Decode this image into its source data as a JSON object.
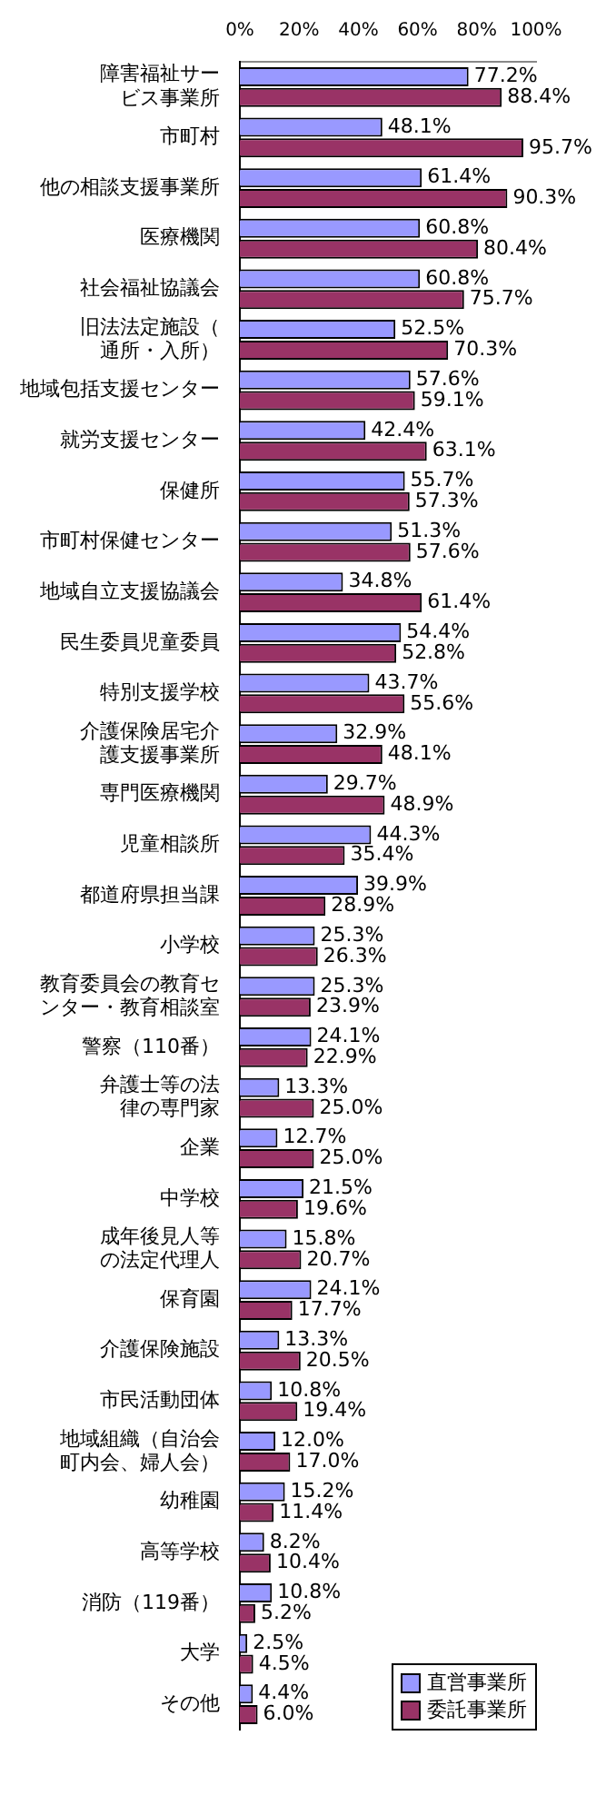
{
  "chart_data": {
    "type": "bar",
    "orientation": "horizontal",
    "categories": [
      "障害福祉サービス事業所",
      "市町村",
      "他の相談支援事業所",
      "医療機関",
      "社会福祉協議会",
      "旧法法定施設（通所・入所）",
      "地域包括支援センター",
      "就労支援センター",
      "保健所",
      "市町村保健センター",
      "地域自立支援協議会",
      "民生委員児童委員",
      "特別支援学校",
      "介護保険居宅介護支援事業所",
      "専門医療機関",
      "児童相談所",
      "都道府県担当課",
      "小学校",
      "教育委員会の教育センター・教育相談室",
      "警察（110番）",
      "弁護士等の法律の専門家",
      "企業",
      "中学校",
      "成年後見人等の法定代理人",
      "保育園",
      "介護保険施設",
      "市民活動団体",
      "地域組織（自治会町内会、婦人会）",
      "幼稚園",
      "高等学校",
      "消防（119番）",
      "大学",
      "その他"
    ],
    "series": [
      {
        "name": "直営事業所",
        "color": "#9999ff",
        "values": [
          77.2,
          48.1,
          61.4,
          60.8,
          60.8,
          52.5,
          57.6,
          42.4,
          55.7,
          51.3,
          34.8,
          54.4,
          43.7,
          32.9,
          29.7,
          44.3,
          39.9,
          25.3,
          25.3,
          24.1,
          13.3,
          12.7,
          21.5,
          15.8,
          24.1,
          13.3,
          10.8,
          12.0,
          15.2,
          8.2,
          10.8,
          2.5,
          4.4
        ],
        "value_labels": [
          "77.2%",
          "48.1%",
          "61.4%",
          "60.8%",
          "60.8%",
          "52.5%",
          "57.6%",
          "42.4%",
          "55.7%",
          "51.3%",
          "34.8%",
          "54.4%",
          "43.7%",
          "32.9%",
          "29.7%",
          "44.3%",
          "39.9%",
          "25.3%",
          "25.3%",
          "24.1%",
          "13.3%",
          "12.7%",
          "21.5%",
          "15.8%",
          "24.1%",
          "13.3%",
          "10.8%",
          "12.0%",
          "15.2%",
          "8.2%",
          "10.8%",
          "2.5%",
          "4.4%"
        ]
      },
      {
        "name": "委託事業所",
        "color": "#993366",
        "values": [
          88.4,
          95.7,
          90.3,
          80.4,
          75.7,
          70.3,
          59.1,
          63.1,
          57.3,
          57.6,
          61.4,
          52.8,
          55.6,
          48.1,
          48.9,
          35.4,
          28.9,
          26.3,
          23.9,
          22.9,
          25.0,
          25.0,
          19.6,
          20.7,
          17.7,
          20.5,
          19.4,
          17.0,
          11.4,
          10.4,
          5.2,
          4.5,
          6.0
        ],
        "value_labels": [
          "88.4%",
          "95.7%",
          "90.3%",
          "80.4%",
          "75.7%",
          "70.3%",
          "59.1%",
          "63.1%",
          "57.3%",
          "57.6%",
          "61.4%",
          "52.8%",
          "55.6%",
          "48.1%",
          "48.9%",
          "35.4%",
          "28.9%",
          "26.3%",
          "23.9%",
          "22.9%",
          "25.0%",
          "25.0%",
          "19.6%",
          "20.7%",
          "17.7%",
          "20.5%",
          "19.4%",
          "17.0%",
          "11.4%",
          "10.4%",
          "5.2%",
          "4.5%",
          "6.0%"
        ]
      }
    ],
    "xlim": [
      0,
      100
    ],
    "xticks": [
      {
        "value": 0,
        "label": "0%"
      },
      {
        "value": 20,
        "label": "20%"
      },
      {
        "value": 40,
        "label": "40%"
      },
      {
        "value": 60,
        "label": "60%"
      },
      {
        "value": 80,
        "label": "80%"
      },
      {
        "value": 100,
        "label": "100%"
      }
    ],
    "grid": false,
    "legend": "bottom right"
  }
}
